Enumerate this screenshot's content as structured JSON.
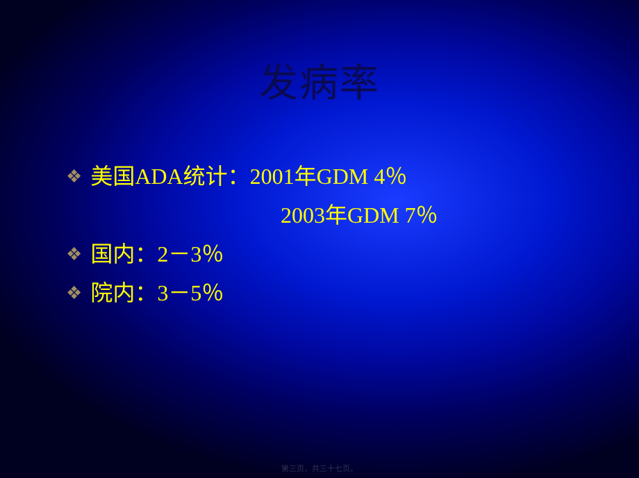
{
  "title": "发病率",
  "bullets": [
    {
      "text": "美国ADA统计：2001年GDM  4％"
    },
    {
      "indent": true,
      "text": "2003年GDM  7％"
    },
    {
      "text": "国内：2－3％"
    },
    {
      "text": "院内：3－5％"
    }
  ],
  "footer": "第三页，共三十七页。",
  "colors": {
    "title": "#0a0a50",
    "text": "#ffff00",
    "bullet": "#a09060"
  },
  "fonts": {
    "title_size": 56,
    "body_size": 32
  }
}
